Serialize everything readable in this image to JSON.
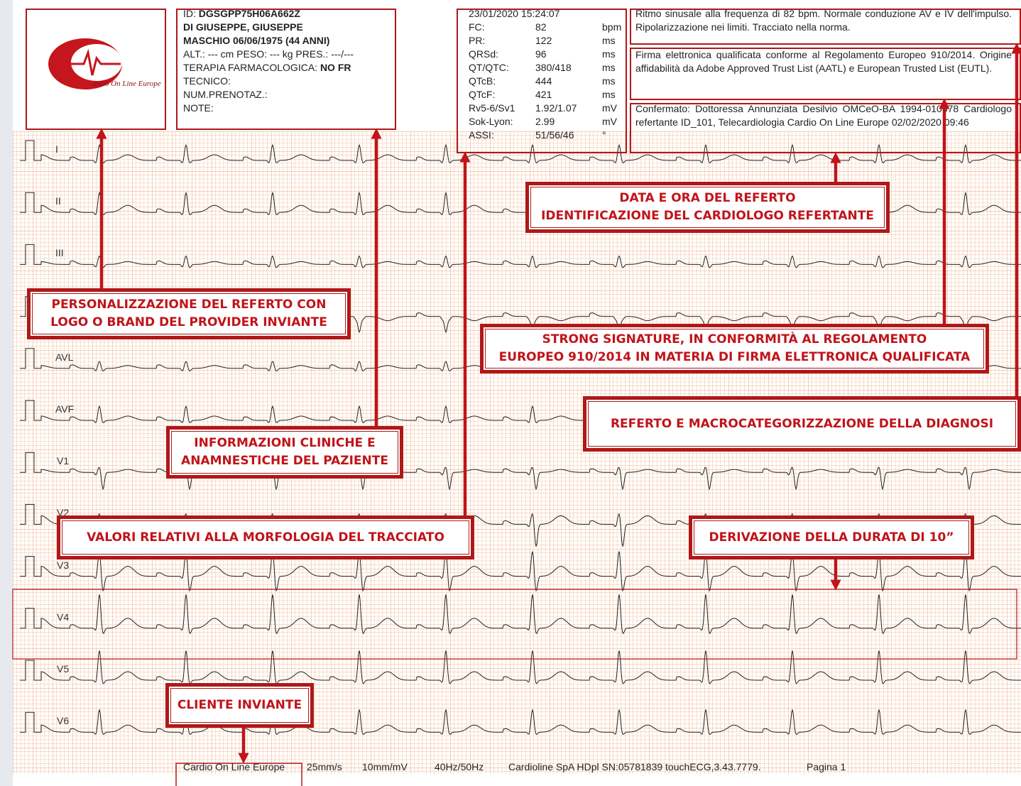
{
  "logo": {
    "text": "ardio On Line Europe"
  },
  "patient": {
    "id_label": "ID:",
    "id": "DGSGPP75H06A662Z",
    "name": "DI GIUSEPPE, GIUSEPPE",
    "sex_dob": "MASCHIO 06/06/1975  (44 ANNI)",
    "measures": "ALT.: --- cm PESO: --- kg   PRES.: ---/---",
    "therapy_label": "TERAPIA FARMACOLOGICA:",
    "therapy": "NO FR",
    "technician": "TECNICO:",
    "booking": "NUM.PRENOTAZ.:",
    "notes": "NOTE:"
  },
  "measurements": {
    "datetime": "23/01/2020 15:24:07",
    "rows": [
      [
        "FC:",
        "82",
        "bpm"
      ],
      [
        "PR:",
        "122",
        "ms"
      ],
      [
        "QRSd:",
        "96",
        "ms"
      ],
      [
        "QT/QTC:",
        "380/418",
        "ms"
      ],
      [
        "QTcB:",
        "444",
        "ms"
      ],
      [
        "QTcF:",
        "421",
        "ms"
      ],
      [
        "Rv5-6/Sv1",
        "1.92/1.07",
        "mV"
      ],
      [
        "Sok-Lyon:",
        "2.99",
        "mV"
      ],
      [
        "ASSI:",
        "51/56/46",
        "°"
      ]
    ]
  },
  "report": {
    "diagnosis": "Ritmo sinusale alla frequenza di 82 bpm. Normale conduzione AV e IV dell'impulso. Ripolarizzazione nei limiti. Tracciato nella norma.",
    "signature": "Firma elettronica qualificata conforme al Regolamento Europeo 910/2014. Origine affidabilità da Adobe Approved Trust List (AATL) e European Trusted List (EUTL).",
    "confirmation": "Confermato: Dottoressa Annunziata Desilvio OMCeO-BA 1994-010578 Cardiologo refertante ID_101, Telecardiologia Cardio On Line Europe 02/02/2020 09:46"
  },
  "leads": [
    "I",
    "II",
    "III",
    null,
    "AVL",
    "AVF",
    "V1",
    "V2",
    "V3",
    "V4",
    "V5",
    "V6"
  ],
  "footer": [
    "Cardio On  Line Europe",
    "25mm/s",
    "10mm/mV",
    "40Hz/50Hz",
    "Cardioline SpA HDpl SN:05781839 touchECG,3.43.7779.",
    "Pagina 1"
  ],
  "callouts": [
    {
      "lines": [
        "DATA E ORA DEL REFERTO",
        "IDENTIFICAZIONE DEL CARDIOLOGO REFERTANTE"
      ]
    },
    {
      "lines": [
        "PERSONALIZZAZIONE DEL REFERTO CON",
        "LOGO O BRAND DEL PROVIDER INVIANTE"
      ]
    },
    {
      "lines": [
        "STRONG SIGNATURE, IN CONFORMITÀ AL REGOLAMENTO",
        "EUROPEO 910/2014 IN MATERIA DI FIRMA ELETTRONICA QUALIFICATA"
      ]
    },
    {
      "lines": [
        "REFERTO E MACROCATEGORIZZAZIONE DELLA DIAGNOSI"
      ]
    },
    {
      "lines": [
        "INFORMAZIONI CLINICHE E",
        "ANAMNESTICHE DEL PAZIENTE"
      ]
    },
    {
      "lines": [
        "VALORI RELATIVI ALLA MORFOLOGIA DEL TRACCIATO"
      ]
    },
    {
      "lines": [
        "DERIVAZIONE DELLA DURATA DI 10”"
      ]
    },
    {
      "lines": [
        "CLIENTE INVIANTE"
      ]
    }
  ]
}
